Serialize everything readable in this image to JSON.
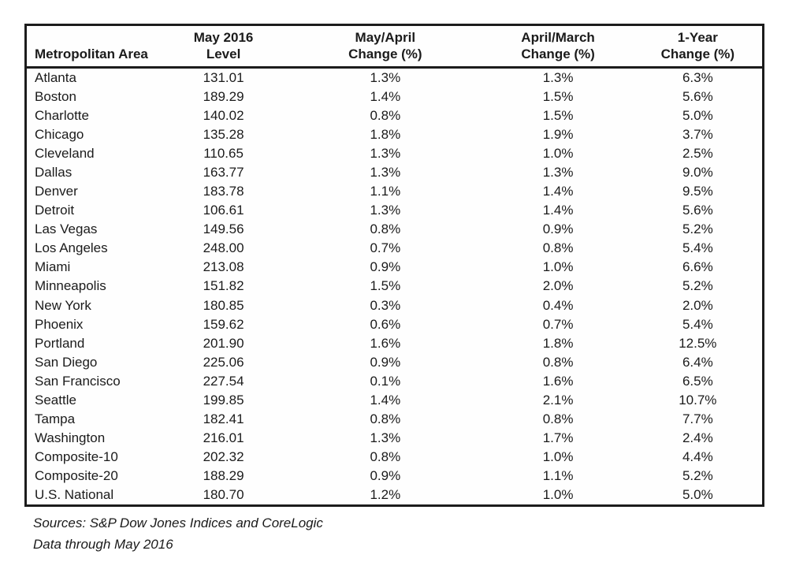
{
  "chart_data": {
    "type": "table",
    "title": "",
    "columns": [
      {
        "line1": "",
        "line2": "Metropolitan Area"
      },
      {
        "line1": "May 2016",
        "line2": "Level"
      },
      {
        "line1": "May/April",
        "line2": "Change (%)"
      },
      {
        "line1": "April/March",
        "line2": "Change (%)"
      },
      {
        "line1": "1-Year",
        "line2": "Change (%)"
      }
    ],
    "rows": [
      [
        "Atlanta",
        "131.01",
        "1.3%",
        "1.3%",
        "6.3%"
      ],
      [
        "Boston",
        "189.29",
        "1.4%",
        "1.5%",
        "5.6%"
      ],
      [
        "Charlotte",
        "140.02",
        "0.8%",
        "1.5%",
        "5.0%"
      ],
      [
        "Chicago",
        "135.28",
        "1.8%",
        "1.9%",
        "3.7%"
      ],
      [
        "Cleveland",
        "110.65",
        "1.3%",
        "1.0%",
        "2.5%"
      ],
      [
        "Dallas",
        "163.77",
        "1.3%",
        "1.3%",
        "9.0%"
      ],
      [
        "Denver",
        "183.78",
        "1.1%",
        "1.4%",
        "9.5%"
      ],
      [
        "Detroit",
        "106.61",
        "1.3%",
        "1.4%",
        "5.6%"
      ],
      [
        "Las Vegas",
        "149.56",
        "0.8%",
        "0.9%",
        "5.2%"
      ],
      [
        "Los Angeles",
        "248.00",
        "0.7%",
        "0.8%",
        "5.4%"
      ],
      [
        "Miami",
        "213.08",
        "0.9%",
        "1.0%",
        "6.6%"
      ],
      [
        "Minneapolis",
        "151.82",
        "1.5%",
        "2.0%",
        "5.2%"
      ],
      [
        "New York",
        "180.85",
        "0.3%",
        "0.4%",
        "2.0%"
      ],
      [
        "Phoenix",
        "159.62",
        "0.6%",
        "0.7%",
        "5.4%"
      ],
      [
        "Portland",
        "201.90",
        "1.6%",
        "1.8%",
        "12.5%"
      ],
      [
        "San Diego",
        "225.06",
        "0.9%",
        "0.8%",
        "6.4%"
      ],
      [
        "San Francisco",
        "227.54",
        "0.1%",
        "1.6%",
        "6.5%"
      ],
      [
        "Seattle",
        "199.85",
        "1.4%",
        "2.1%",
        "10.7%"
      ],
      [
        "Tampa",
        "182.41",
        "0.8%",
        "0.8%",
        "7.7%"
      ],
      [
        "Washington",
        "216.01",
        "1.3%",
        "1.7%",
        "2.4%"
      ],
      [
        "Composite-10",
        "202.32",
        "0.8%",
        "1.0%",
        "4.4%"
      ],
      [
        "Composite-20",
        "188.29",
        "0.9%",
        "1.1%",
        "5.2%"
      ],
      [
        "U.S. National",
        "180.70",
        "1.2%",
        "1.0%",
        "5.0%"
      ]
    ],
    "layout": {
      "grid": "off",
      "border_color": "#1c1c1c",
      "text_color": "#1b1b1b",
      "background": "#ffffff"
    }
  },
  "footer": {
    "line1": "Sources: S&P Dow Jones Indices and CoreLogic",
    "line2": "Data through May 2016"
  }
}
